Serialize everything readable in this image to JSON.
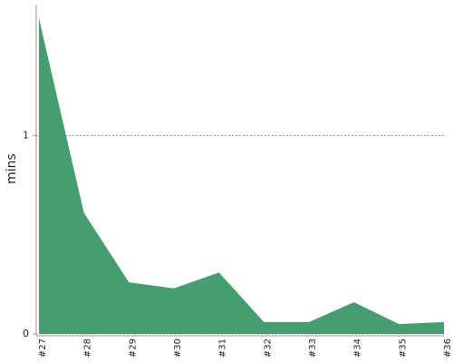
{
  "chart_data": {
    "type": "area",
    "y_label": "mins",
    "categories": [
      "#27",
      "#28",
      "#29",
      "#30",
      "#31",
      "#32",
      "#33",
      "#34",
      "#35",
      "#36"
    ],
    "values": [
      1.59,
      0.61,
      0.26,
      0.23,
      0.31,
      0.06,
      0.06,
      0.16,
      0.05,
      0.06
    ],
    "color": "#459e6d",
    "ylim": [
      0,
      1.66
    ],
    "yticks": [
      0,
      1
    ],
    "grid": true
  }
}
